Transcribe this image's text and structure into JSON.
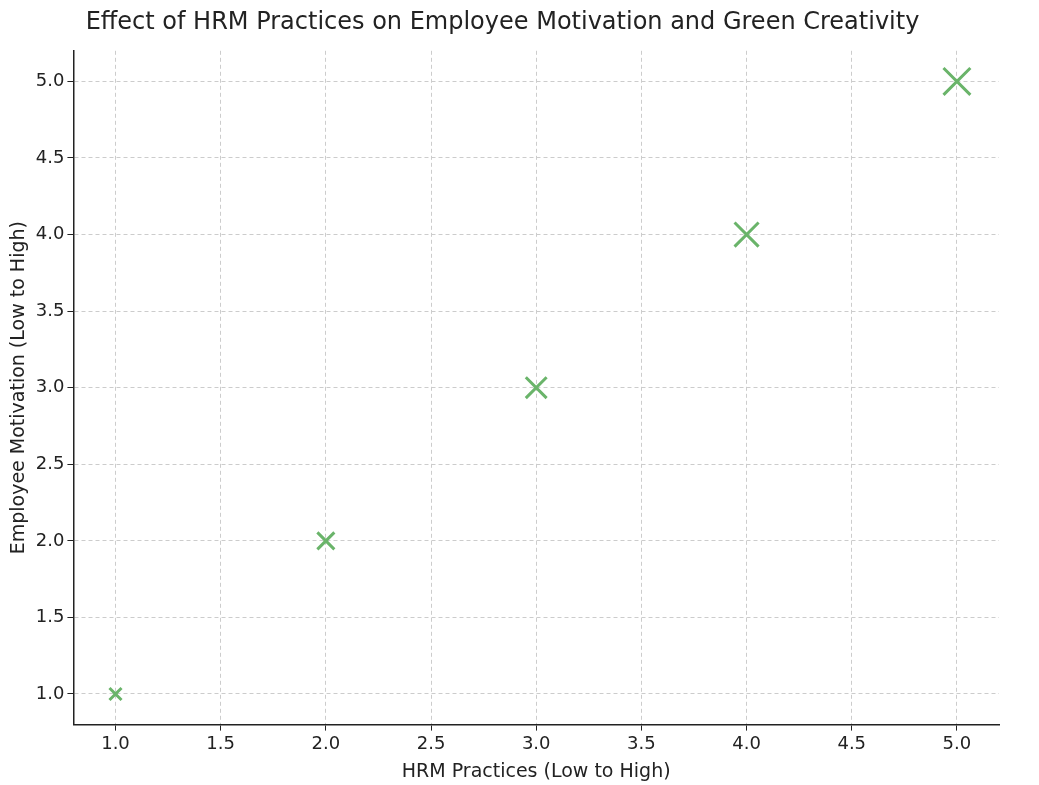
{
  "chart_data": {
    "type": "bubble",
    "title": "Effect of HRM Practices on Employee Motivation and Green Creativity",
    "xlabel": "HRM Practices (Low to High)",
    "ylabel": "Employee Motivation (Low to High)",
    "x": [
      1,
      2,
      3,
      4,
      5
    ],
    "values": [
      1,
      2,
      3,
      4,
      5
    ],
    "sizes": [
      0.2,
      0.4,
      0.6,
      0.8,
      1
    ],
    "color": "#6ab46a",
    "marker": "cross",
    "xlim": [
      0.8,
      5.2
    ],
    "ylim": [
      0.8,
      5.2
    ],
    "xticks": [
      {
        "value": 1,
        "label": "1.0"
      },
      {
        "value": 1.5,
        "label": "1.5"
      },
      {
        "value": 2,
        "label": "2.0"
      },
      {
        "value": 2.5,
        "label": "2.5"
      },
      {
        "value": 3,
        "label": "3.0"
      },
      {
        "value": 3.5,
        "label": "3.5"
      },
      {
        "value": 4,
        "label": "4.0"
      },
      {
        "value": 4.5,
        "label": "4.5"
      },
      {
        "value": 5,
        "label": "5.0"
      }
    ],
    "yticks": [
      {
        "value": 1,
        "label": "1.0"
      },
      {
        "value": 1.5,
        "label": "1.5"
      },
      {
        "value": 2,
        "label": "2.0"
      },
      {
        "value": 2.5,
        "label": "2.5"
      },
      {
        "value": 3,
        "label": "3.0"
      },
      {
        "value": 3.5,
        "label": "3.5"
      },
      {
        "value": 4,
        "label": "4.0"
      },
      {
        "value": 4.5,
        "label": "4.5"
      },
      {
        "value": 5,
        "label": "5.0"
      }
    ],
    "grid": true
  }
}
